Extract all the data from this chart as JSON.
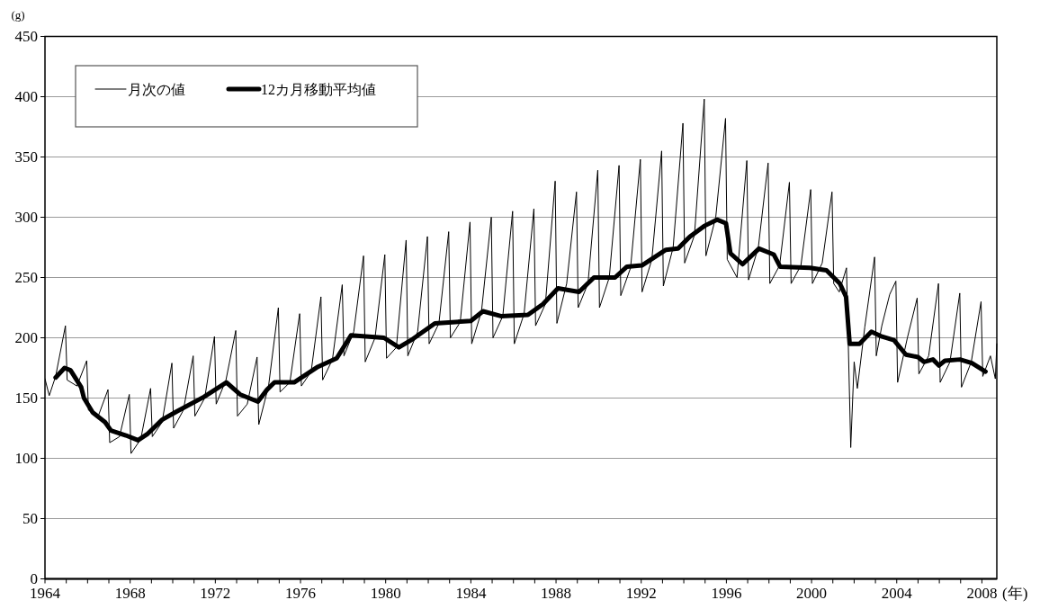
{
  "chart_data": {
    "type": "line",
    "ylabel": "(g)",
    "xlabel": "(年)",
    "xlim": [
      1964,
      2008.7
    ],
    "ylim": [
      0,
      450
    ],
    "yticks": [
      0,
      50,
      100,
      150,
      200,
      250,
      300,
      350,
      400,
      450
    ],
    "xticks": [
      1964,
      {
        "value": 1965,
        "label": null
      },
      {
        "value": 1966,
        "label": null
      },
      {
        "value": 1967,
        "label": null
      },
      1968,
      {
        "value": 1969,
        "label": null
      },
      {
        "value": 1970,
        "label": null
      },
      {
        "value": 1971,
        "label": null
      },
      1972,
      {
        "value": 1973,
        "label": null
      },
      {
        "value": 1974,
        "label": null
      },
      {
        "value": 1975,
        "label": null
      },
      1976,
      {
        "value": 1977,
        "label": null
      },
      {
        "value": 1978,
        "label": null
      },
      {
        "value": 1979,
        "label": null
      },
      1980,
      {
        "value": 1981,
        "label": null
      },
      {
        "value": 1982,
        "label": null
      },
      {
        "value": 1983,
        "label": null
      },
      1984,
      {
        "value": 1985,
        "label": null
      },
      {
        "value": 1986,
        "label": null
      },
      {
        "value": 1987,
        "label": null
      },
      1988,
      {
        "value": 1989,
        "label": null
      },
      {
        "value": 1990,
        "label": null
      },
      {
        "value": 1991,
        "label": null
      },
      1992,
      {
        "value": 1993,
        "label": null
      },
      {
        "value": 1994,
        "label": null
      },
      {
        "value": 1995,
        "label": null
      },
      1996,
      {
        "value": 1997,
        "label": null
      },
      {
        "value": 1998,
        "label": null
      },
      {
        "value": 1999,
        "label": null
      },
      2000,
      {
        "value": 2001,
        "label": null
      },
      {
        "value": 2002,
        "label": null
      },
      {
        "value": 2003,
        "label": null
      },
      2004,
      {
        "value": 2005,
        "label": null
      },
      {
        "value": 2006,
        "label": null
      },
      {
        "value": 2007,
        "label": null
      },
      2008
    ],
    "grid": "y",
    "legend": "top left",
    "marker": "none",
    "line_style": "solid",
    "series": [
      {
        "name": "月次の値",
        "color": "#000000",
        "x": [
          1964.0,
          1964.2,
          1964.5,
          1964.96,
          1965.04,
          1965.5,
          1965.96,
          1966.04,
          1966.5,
          1966.96,
          1967.04,
          1967.5,
          1967.96,
          1968.04,
          1968.5,
          1968.96,
          1969.04,
          1969.5,
          1969.96,
          1970.04,
          1970.5,
          1970.96,
          1971.04,
          1971.5,
          1971.96,
          1972.04,
          1972.5,
          1972.96,
          1973.04,
          1973.5,
          1973.96,
          1974.04,
          1974.5,
          1974.96,
          1975.04,
          1975.5,
          1975.96,
          1976.04,
          1976.5,
          1976.96,
          1977.04,
          1977.5,
          1977.96,
          1978.04,
          1978.5,
          1978.96,
          1979.04,
          1979.5,
          1979.96,
          1980.04,
          1980.5,
          1980.96,
          1981.04,
          1981.5,
          1981.96,
          1982.04,
          1982.5,
          1982.96,
          1983.04,
          1983.5,
          1983.96,
          1984.04,
          1984.5,
          1984.96,
          1985.04,
          1985.5,
          1985.96,
          1986.04,
          1986.5,
          1986.96,
          1987.04,
          1987.5,
          1987.96,
          1988.04,
          1988.5,
          1988.96,
          1989.04,
          1989.5,
          1989.96,
          1990.04,
          1990.5,
          1990.96,
          1991.04,
          1991.5,
          1991.96,
          1992.04,
          1992.5,
          1992.96,
          1993.04,
          1993.5,
          1993.96,
          1994.04,
          1994.5,
          1994.96,
          1995.04,
          1995.5,
          1995.96,
          1996.04,
          1996.5,
          1996.96,
          1997.04,
          1997.5,
          1997.96,
          1998.04,
          1998.5,
          1998.96,
          1999.04,
          1999.5,
          1999.96,
          2000.04,
          2000.5,
          2000.96,
          2001.04,
          2001.3,
          2001.64,
          2001.84,
          2002.0,
          2002.15,
          2002.5,
          2002.96,
          2003.04,
          2003.3,
          2003.67,
          2003.96,
          2004.04,
          2004.5,
          2004.96,
          2005.04,
          2005.5,
          2005.96,
          2006.04,
          2006.5,
          2006.96,
          2007.04,
          2007.5,
          2007.96,
          2008.04,
          2008.4,
          2008.63,
          2008.7
        ],
        "values": [
          166,
          152,
          168,
          210,
          165,
          160,
          181,
          140,
          135,
          157,
          113,
          118,
          153,
          104,
          116,
          158,
          118,
          130,
          179,
          125,
          140,
          185,
          135,
          150,
          201,
          145,
          165,
          206,
          135,
          145,
          184,
          128,
          160,
          225,
          155,
          163,
          220,
          160,
          172,
          234,
          165,
          182,
          244,
          185,
          205,
          268,
          180,
          200,
          269,
          183,
          192,
          281,
          185,
          205,
          284,
          195,
          212,
          288,
          200,
          213,
          296,
          195,
          222,
          300,
          200,
          218,
          305,
          195,
          220,
          307,
          210,
          228,
          330,
          212,
          245,
          321,
          225,
          245,
          339,
          225,
          250,
          343,
          235,
          258,
          348,
          238,
          265,
          355,
          243,
          275,
          378,
          262,
          285,
          398,
          268,
          300,
          382,
          265,
          250,
          347,
          248,
          275,
          345,
          245,
          260,
          329,
          245,
          260,
          323,
          245,
          262,
          321,
          245,
          238,
          258,
          109,
          180,
          158,
          209,
          267,
          185,
          210,
          236,
          247,
          163,
          200,
          233,
          170,
          185,
          245,
          163,
          180,
          237,
          159,
          180,
          230,
          168,
          185,
          166,
          195
        ]
      },
      {
        "name": "12カ月移動平均値",
        "color": "#000000",
        "x": [
          1964.5,
          1964.92,
          1965.2,
          1965.7,
          1965.83,
          1966.24,
          1966.82,
          1967.1,
          1967.8,
          1968.37,
          1968.8,
          1969.5,
          1970.2,
          1971.47,
          1972.52,
          1973.16,
          1974.0,
          1974.43,
          1974.78,
          1975.7,
          1976.82,
          1977.7,
          1978.37,
          1979.92,
          1980.62,
          1981.19,
          1982.31,
          1984.0,
          1984.57,
          1985.41,
          1986.68,
          1987.39,
          1988.09,
          1989.08,
          1989.78,
          1990.77,
          1991.33,
          1992.03,
          1993.16,
          1993.73,
          1994.29,
          1994.99,
          1995.56,
          1995.98,
          1996.19,
          1996.76,
          1997.53,
          1998.23,
          1998.52,
          1999.93,
          2000.7,
          2001.33,
          2001.62,
          2001.79,
          2002.25,
          2002.81,
          2003.31,
          2003.87,
          2004.43,
          2005.0,
          2005.28,
          2005.7,
          2005.98,
          2006.26,
          2006.97,
          2007.53,
          2008.17
        ],
        "values": [
          167,
          175,
          173,
          159,
          150,
          138,
          130,
          123,
          119,
          115,
          120,
          132,
          139,
          151,
          163,
          153,
          147,
          157,
          163,
          163,
          176,
          183,
          202,
          200,
          192,
          198,
          212,
          214,
          222,
          218,
          219,
          228,
          241,
          238,
          250,
          250,
          259,
          260,
          273,
          274,
          284,
          293,
          298,
          295,
          270,
          261,
          274,
          269,
          259,
          258,
          256,
          245,
          234,
          195,
          195,
          205,
          201,
          198,
          186,
          184,
          180,
          182,
          177,
          181,
          182,
          179,
          172
        ]
      }
    ]
  }
}
